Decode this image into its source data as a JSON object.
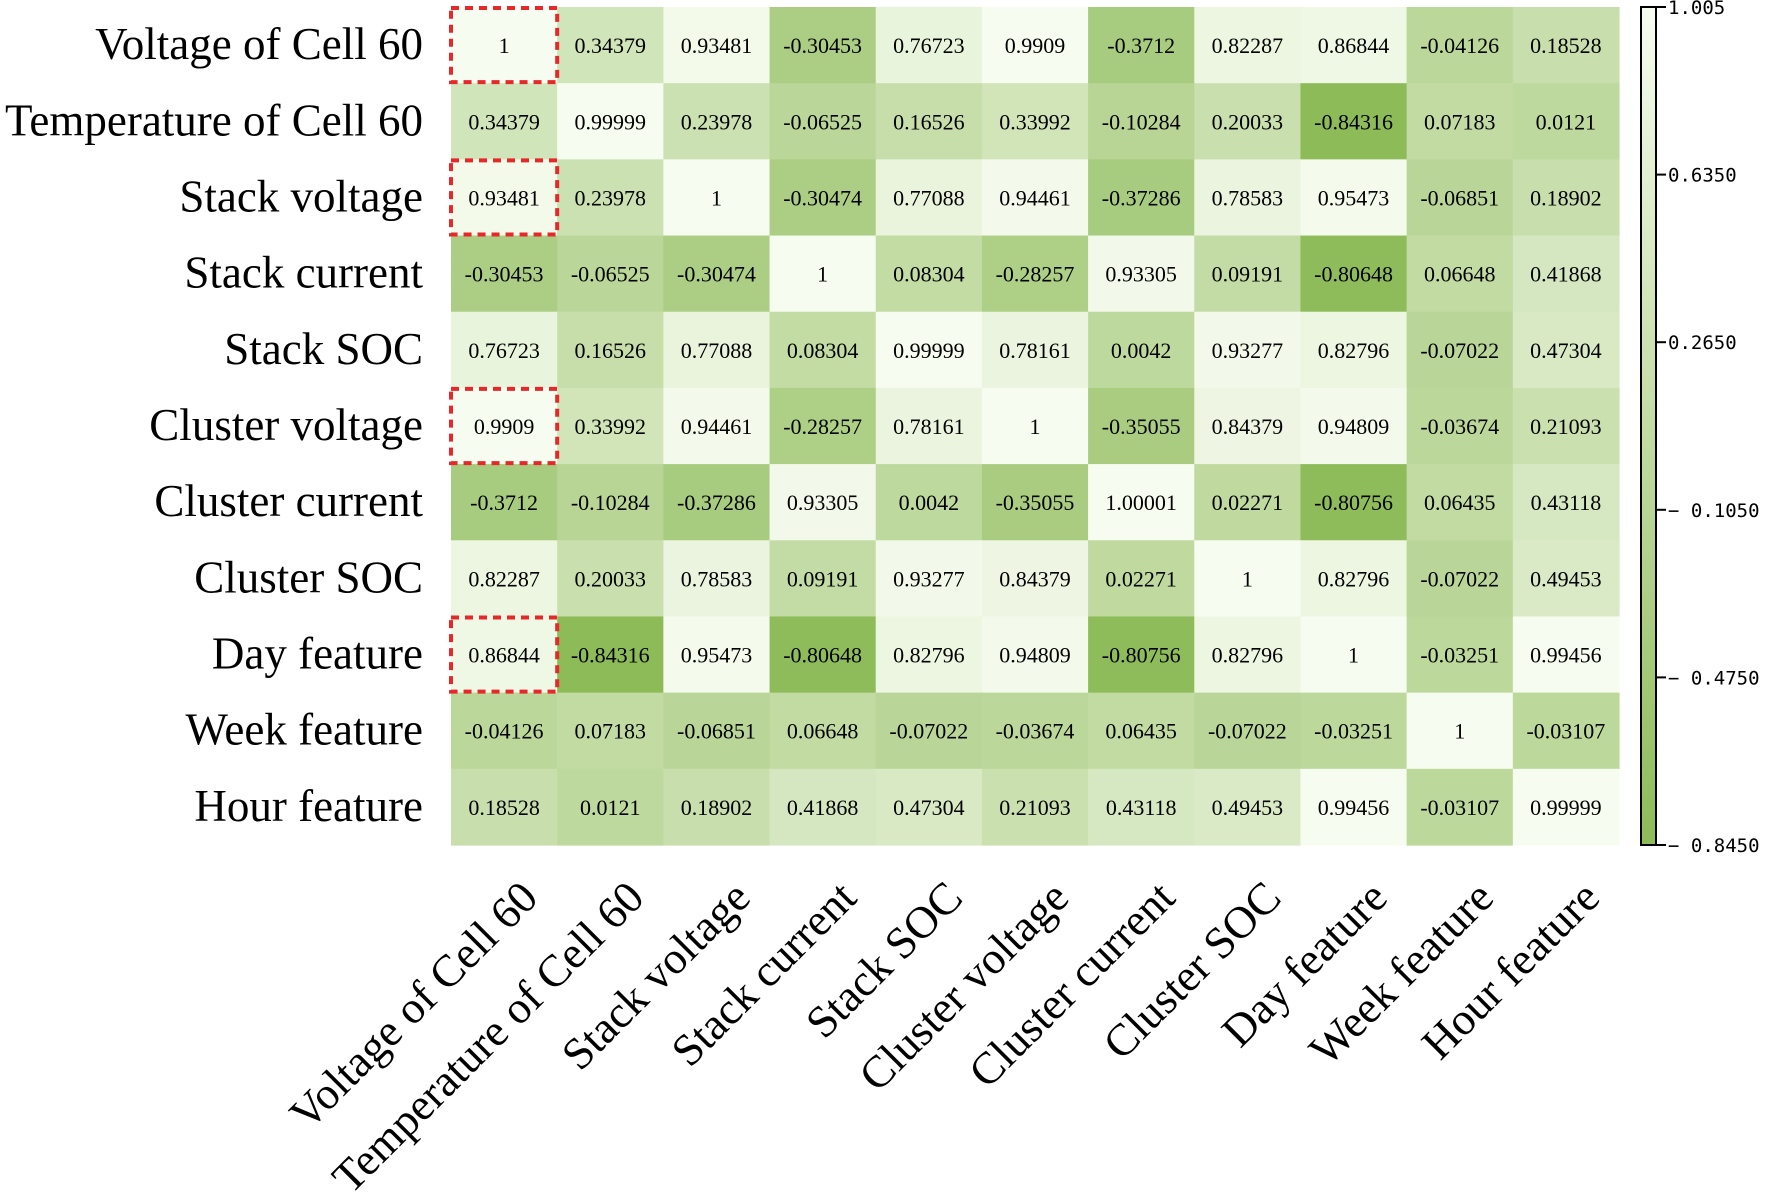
{
  "chart_data": {
    "type": "heatmap",
    "title": "",
    "rows": [
      "Voltage of Cell 60",
      "Temperature of Cell 60",
      "Stack voltage",
      "Stack current",
      "Stack SOC",
      "Cluster voltage",
      "Cluster current",
      "Cluster SOC",
      "Day feature",
      "Week feature",
      "Hour feature"
    ],
    "columns": [
      "Voltage of Cell 60",
      "Temperature of Cell 60",
      "Stack voltage",
      "Stack current",
      "Stack SOC",
      "Cluster voltage",
      "Cluster current",
      "Cluster SOC",
      "Day feature",
      "Week feature",
      "Hour feature"
    ],
    "cell_labels": [
      [
        "1",
        "0.34379",
        "0.93481",
        "-0.30453",
        "0.76723",
        "0.9909",
        "-0.3712",
        "0.82287",
        "0.86844",
        "-0.04126",
        "0.18528"
      ],
      [
        "0.34379",
        "0.99999",
        "0.23978",
        "-0.06525",
        "0.16526",
        "0.33992",
        "-0.10284",
        "0.20033",
        "-0.84316",
        "0.07183",
        "0.0121"
      ],
      [
        "0.93481",
        "0.23978",
        "1",
        "-0.30474",
        "0.77088",
        "0.94461",
        "-0.37286",
        "0.78583",
        "0.95473",
        "-0.06851",
        "0.18902"
      ],
      [
        "-0.30453",
        "-0.06525",
        "-0.30474",
        "1",
        "0.08304",
        "-0.28257",
        "0.93305",
        "0.09191",
        "-0.80648",
        "0.06648",
        "0.41868"
      ],
      [
        "0.76723",
        "0.16526",
        "0.77088",
        "0.08304",
        "0.99999",
        "0.78161",
        "0.0042",
        "0.93277",
        "0.82796",
        "-0.07022",
        "0.47304"
      ],
      [
        "0.9909",
        "0.33992",
        "0.94461",
        "-0.28257",
        "0.78161",
        "1",
        "-0.35055",
        "0.84379",
        "0.94809",
        "-0.03674",
        "0.21093"
      ],
      [
        "-0.3712",
        "-0.10284",
        "-0.37286",
        "0.93305",
        "0.0042",
        "-0.35055",
        "1.00001",
        "0.02271",
        "-0.80756",
        "0.06435",
        "0.43118"
      ],
      [
        "0.82287",
        "0.20033",
        "0.78583",
        "0.09191",
        "0.93277",
        "0.84379",
        "0.02271",
        "1",
        "0.82796",
        "-0.07022",
        "0.49453"
      ],
      [
        "0.86844",
        "-0.84316",
        "0.95473",
        "-0.80648",
        "0.82796",
        "0.94809",
        "-0.80756",
        "0.82796",
        "1",
        "-0.03251",
        "0.99456"
      ],
      [
        "-0.04126",
        "0.07183",
        "-0.06851",
        "0.06648",
        "-0.07022",
        "-0.03674",
        "0.06435",
        "-0.07022",
        "-0.03251",
        "1",
        "-0.03107"
      ],
      [
        "0.18528",
        "0.0121",
        "0.18902",
        "0.41868",
        "0.47304",
        "0.21093",
        "0.43118",
        "0.49453",
        "0.99456",
        "-0.03107",
        "0.99999"
      ]
    ],
    "highlighted_cells": [
      [
        0,
        0
      ],
      [
        2,
        0
      ],
      [
        5,
        0
      ],
      [
        8,
        0
      ]
    ],
    "colorbar": {
      "min": -0.845,
      "max": 1.005,
      "ticks": [
        "1.005",
        "0.6350",
        "0.2650",
        "− 0.1050",
        "− 0.4750",
        "− 0.8450"
      ],
      "tick_values": [
        1.005,
        0.635,
        0.265,
        -0.105,
        -0.475,
        -0.845
      ],
      "color_high": "#f7fcf0",
      "color_low": "#8dbb58"
    },
    "highlight_color": "#e8272a"
  }
}
